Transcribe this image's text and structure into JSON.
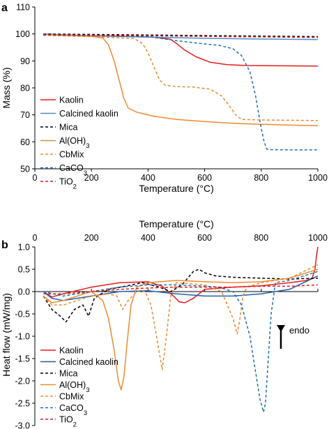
{
  "colors": {
    "Kaolin": "#e41a1c",
    "Calcined kaolin": "#4a90c8",
    "Mica": "#000000",
    "Al(OH)3": "#ee8a32",
    "CbMix": "#ee8a32",
    "CaCO3": "#1f6fb4",
    "TiO2": "#e41a1c",
    "heatflow_Calcined kaolin": "#1f5fa8"
  },
  "chart_data": [
    {
      "panel_label": "a",
      "type": "line",
      "title": "",
      "xlabel": "Temperature (°C)",
      "ylabel": "Mass (%)",
      "xlim": [
        0,
        1000
      ],
      "ylim": [
        50,
        110
      ],
      "xticks": [
        0,
        200,
        400,
        600,
        800,
        1000
      ],
      "yticks": [
        50,
        60,
        70,
        80,
        90,
        100,
        110
      ],
      "grid": false,
      "legend_position": "lower-left",
      "series": [
        {
          "name": "Kaolin",
          "style": "solid",
          "x": [
            30,
            100,
            300,
            420,
            480,
            500,
            530,
            570,
            620,
            680,
            750,
            850,
            1000
          ],
          "y": [
            100,
            99.5,
            99.2,
            98.8,
            98,
            96.5,
            94,
            91.5,
            89.5,
            88.6,
            88.3,
            88.2,
            88.1
          ]
        },
        {
          "name": "Calcined kaolin",
          "style": "solid",
          "x": [
            30,
            200,
            400,
            600,
            800,
            1000
          ],
          "y": [
            100,
            99.3,
            98.8,
            98.4,
            98.1,
            97.9
          ]
        },
        {
          "name": "Mica",
          "style": "dashed",
          "x": [
            30,
            200,
            400,
            600,
            800,
            1000
          ],
          "y": [
            100,
            99.8,
            99.6,
            99.4,
            99.2,
            99
          ]
        },
        {
          "name": "Al(OH)3",
          "style": "solid",
          "x": [
            30,
            100,
            200,
            240,
            260,
            280,
            300,
            315,
            330,
            360,
            420,
            500,
            600,
            700,
            800,
            900,
            1000
          ],
          "y": [
            99.8,
            99.5,
            99.1,
            98.5,
            96,
            90,
            82,
            76,
            72.5,
            71,
            69.5,
            68.3,
            67.5,
            66.9,
            66.5,
            66.2,
            66
          ]
        },
        {
          "name": "CbMix",
          "style": "dashed",
          "x": [
            30,
            200,
            350,
            380,
            400,
            420,
            440,
            460,
            500,
            560,
            620,
            660,
            690,
            710,
            730,
            800,
            900,
            1000
          ],
          "y": [
            99.5,
            99,
            98.3,
            96.5,
            93,
            88,
            83,
            81,
            80.5,
            80.3,
            79.5,
            77,
            73,
            70,
            68.3,
            68.1,
            68,
            67.9
          ]
        },
        {
          "name": "CaCO3",
          "style": "dashed",
          "x": [
            30,
            200,
            400,
            500,
            600,
            650,
            700,
            730,
            760,
            780,
            790,
            800,
            810,
            820,
            830,
            900,
            1000
          ],
          "y": [
            99.8,
            99.5,
            99,
            97.5,
            96.3,
            95.8,
            94.5,
            92,
            86,
            77,
            71,
            65,
            60,
            57.3,
            57.1,
            57,
            57
          ]
        },
        {
          "name": "TiO2",
          "style": "dashed",
          "x": [
            30,
            200,
            400,
            600,
            800,
            1000
          ],
          "y": [
            99.6,
            99.4,
            99.3,
            99.1,
            98.9,
            98.7
          ]
        }
      ]
    },
    {
      "panel_label": "b",
      "type": "line",
      "title": "",
      "xlabel": "Temperature (°C)",
      "ylabel": "Heat flow (mW/mg)",
      "xlim": [
        0,
        1000
      ],
      "ylim": [
        -3.0,
        1.0
      ],
      "xticks": [
        0,
        200,
        400,
        600,
        800,
        1000
      ],
      "yticks": [
        -3.0,
        -2.5,
        -2.0,
        -1.5,
        -1.0,
        -0.5,
        0.0,
        0.5,
        1.0
      ],
      "grid": false,
      "legend_position": "lower-left",
      "annotation": "endo",
      "series": [
        {
          "name": "Kaolin",
          "style": "solid",
          "x": [
            30,
            60,
            100,
            200,
            300,
            400,
            450,
            490,
            510,
            530,
            560,
            600,
            700,
            800,
            900,
            960,
            980,
            990,
            995,
            1000
          ],
          "y": [
            0.0,
            -0.12,
            -0.05,
            0.1,
            0.2,
            0.22,
            0.12,
            -0.1,
            -0.23,
            -0.25,
            -0.15,
            0.05,
            0.1,
            0.13,
            0.2,
            0.25,
            0.3,
            0.5,
            0.8,
            1.0
          ]
        },
        {
          "name": "Calcined kaolin",
          "style": "solid",
          "x": [
            30,
            60,
            100,
            200,
            300,
            400,
            500,
            600,
            700,
            800,
            900,
            1000
          ],
          "y": [
            0.0,
            -0.15,
            -0.2,
            -0.1,
            0.0,
            0.02,
            -0.05,
            -0.1,
            -0.1,
            -0.05,
            0.05,
            0.35
          ]
        },
        {
          "name": "Mica",
          "style": "dashed",
          "x": [
            30,
            60,
            90,
            110,
            140,
            170,
            190,
            210,
            260,
            320,
            380,
            440,
            480,
            520,
            560,
            580,
            600,
            640,
            700,
            800,
            900,
            1000
          ],
          "y": [
            -0.1,
            -0.4,
            -0.55,
            -0.68,
            -0.4,
            -0.3,
            -0.55,
            -0.15,
            0.05,
            0.12,
            0.2,
            0.1,
            0.0,
            0.15,
            0.45,
            0.5,
            0.42,
            0.35,
            0.32,
            0.3,
            0.28,
            0.3
          ]
        },
        {
          "name": "Al(OH)3",
          "style": "solid",
          "x": [
            30,
            60,
            100,
            200,
            240,
            260,
            280,
            295,
            305,
            315,
            325,
            340,
            360,
            400,
            500,
            600,
            700,
            800,
            900,
            1000
          ],
          "y": [
            -0.1,
            -0.25,
            -0.2,
            0.0,
            -0.2,
            -0.6,
            -1.3,
            -2.0,
            -2.2,
            -1.9,
            -1.2,
            -0.3,
            0.1,
            0.2,
            0.25,
            0.22,
            0.2,
            0.22,
            0.3,
            0.5
          ]
        },
        {
          "name": "CbMix",
          "style": "dashed",
          "x": [
            30,
            60,
            100,
            200,
            260,
            290,
            310,
            330,
            360,
            390,
            410,
            430,
            450,
            465,
            480,
            500,
            600,
            660,
            700,
            715,
            725,
            735,
            750,
            800,
            900,
            1000
          ],
          "y": [
            -0.1,
            -0.3,
            -0.3,
            -0.1,
            -0.05,
            -0.1,
            -0.4,
            -0.2,
            0.0,
            0.0,
            -0.3,
            -1.0,
            -1.75,
            -1.0,
            -0.1,
            0.2,
            0.15,
            0.0,
            -0.6,
            -0.95,
            -0.6,
            -0.1,
            0.1,
            0.2,
            0.3,
            0.6
          ]
        },
        {
          "name": "CaCO3",
          "style": "dashed",
          "x": [
            30,
            100,
            200,
            300,
            400,
            500,
            600,
            650,
            700,
            730,
            760,
            780,
            795,
            808,
            815,
            822,
            835,
            850,
            900,
            1000
          ],
          "y": [
            0.0,
            -0.1,
            0.0,
            0.1,
            0.15,
            0.15,
            0.12,
            0.1,
            0.0,
            -0.3,
            -1.0,
            -1.8,
            -2.4,
            -2.7,
            -2.5,
            -1.8,
            -0.5,
            0.2,
            0.25,
            0.45
          ]
        },
        {
          "name": "TiO2",
          "style": "dashed",
          "x": [
            30,
            100,
            200,
            300,
            400,
            500,
            600,
            700,
            800,
            900,
            1000
          ],
          "y": [
            -0.05,
            -0.05,
            0.0,
            0.05,
            0.08,
            0.1,
            0.1,
            0.1,
            0.12,
            0.12,
            0.15
          ]
        }
      ]
    }
  ]
}
